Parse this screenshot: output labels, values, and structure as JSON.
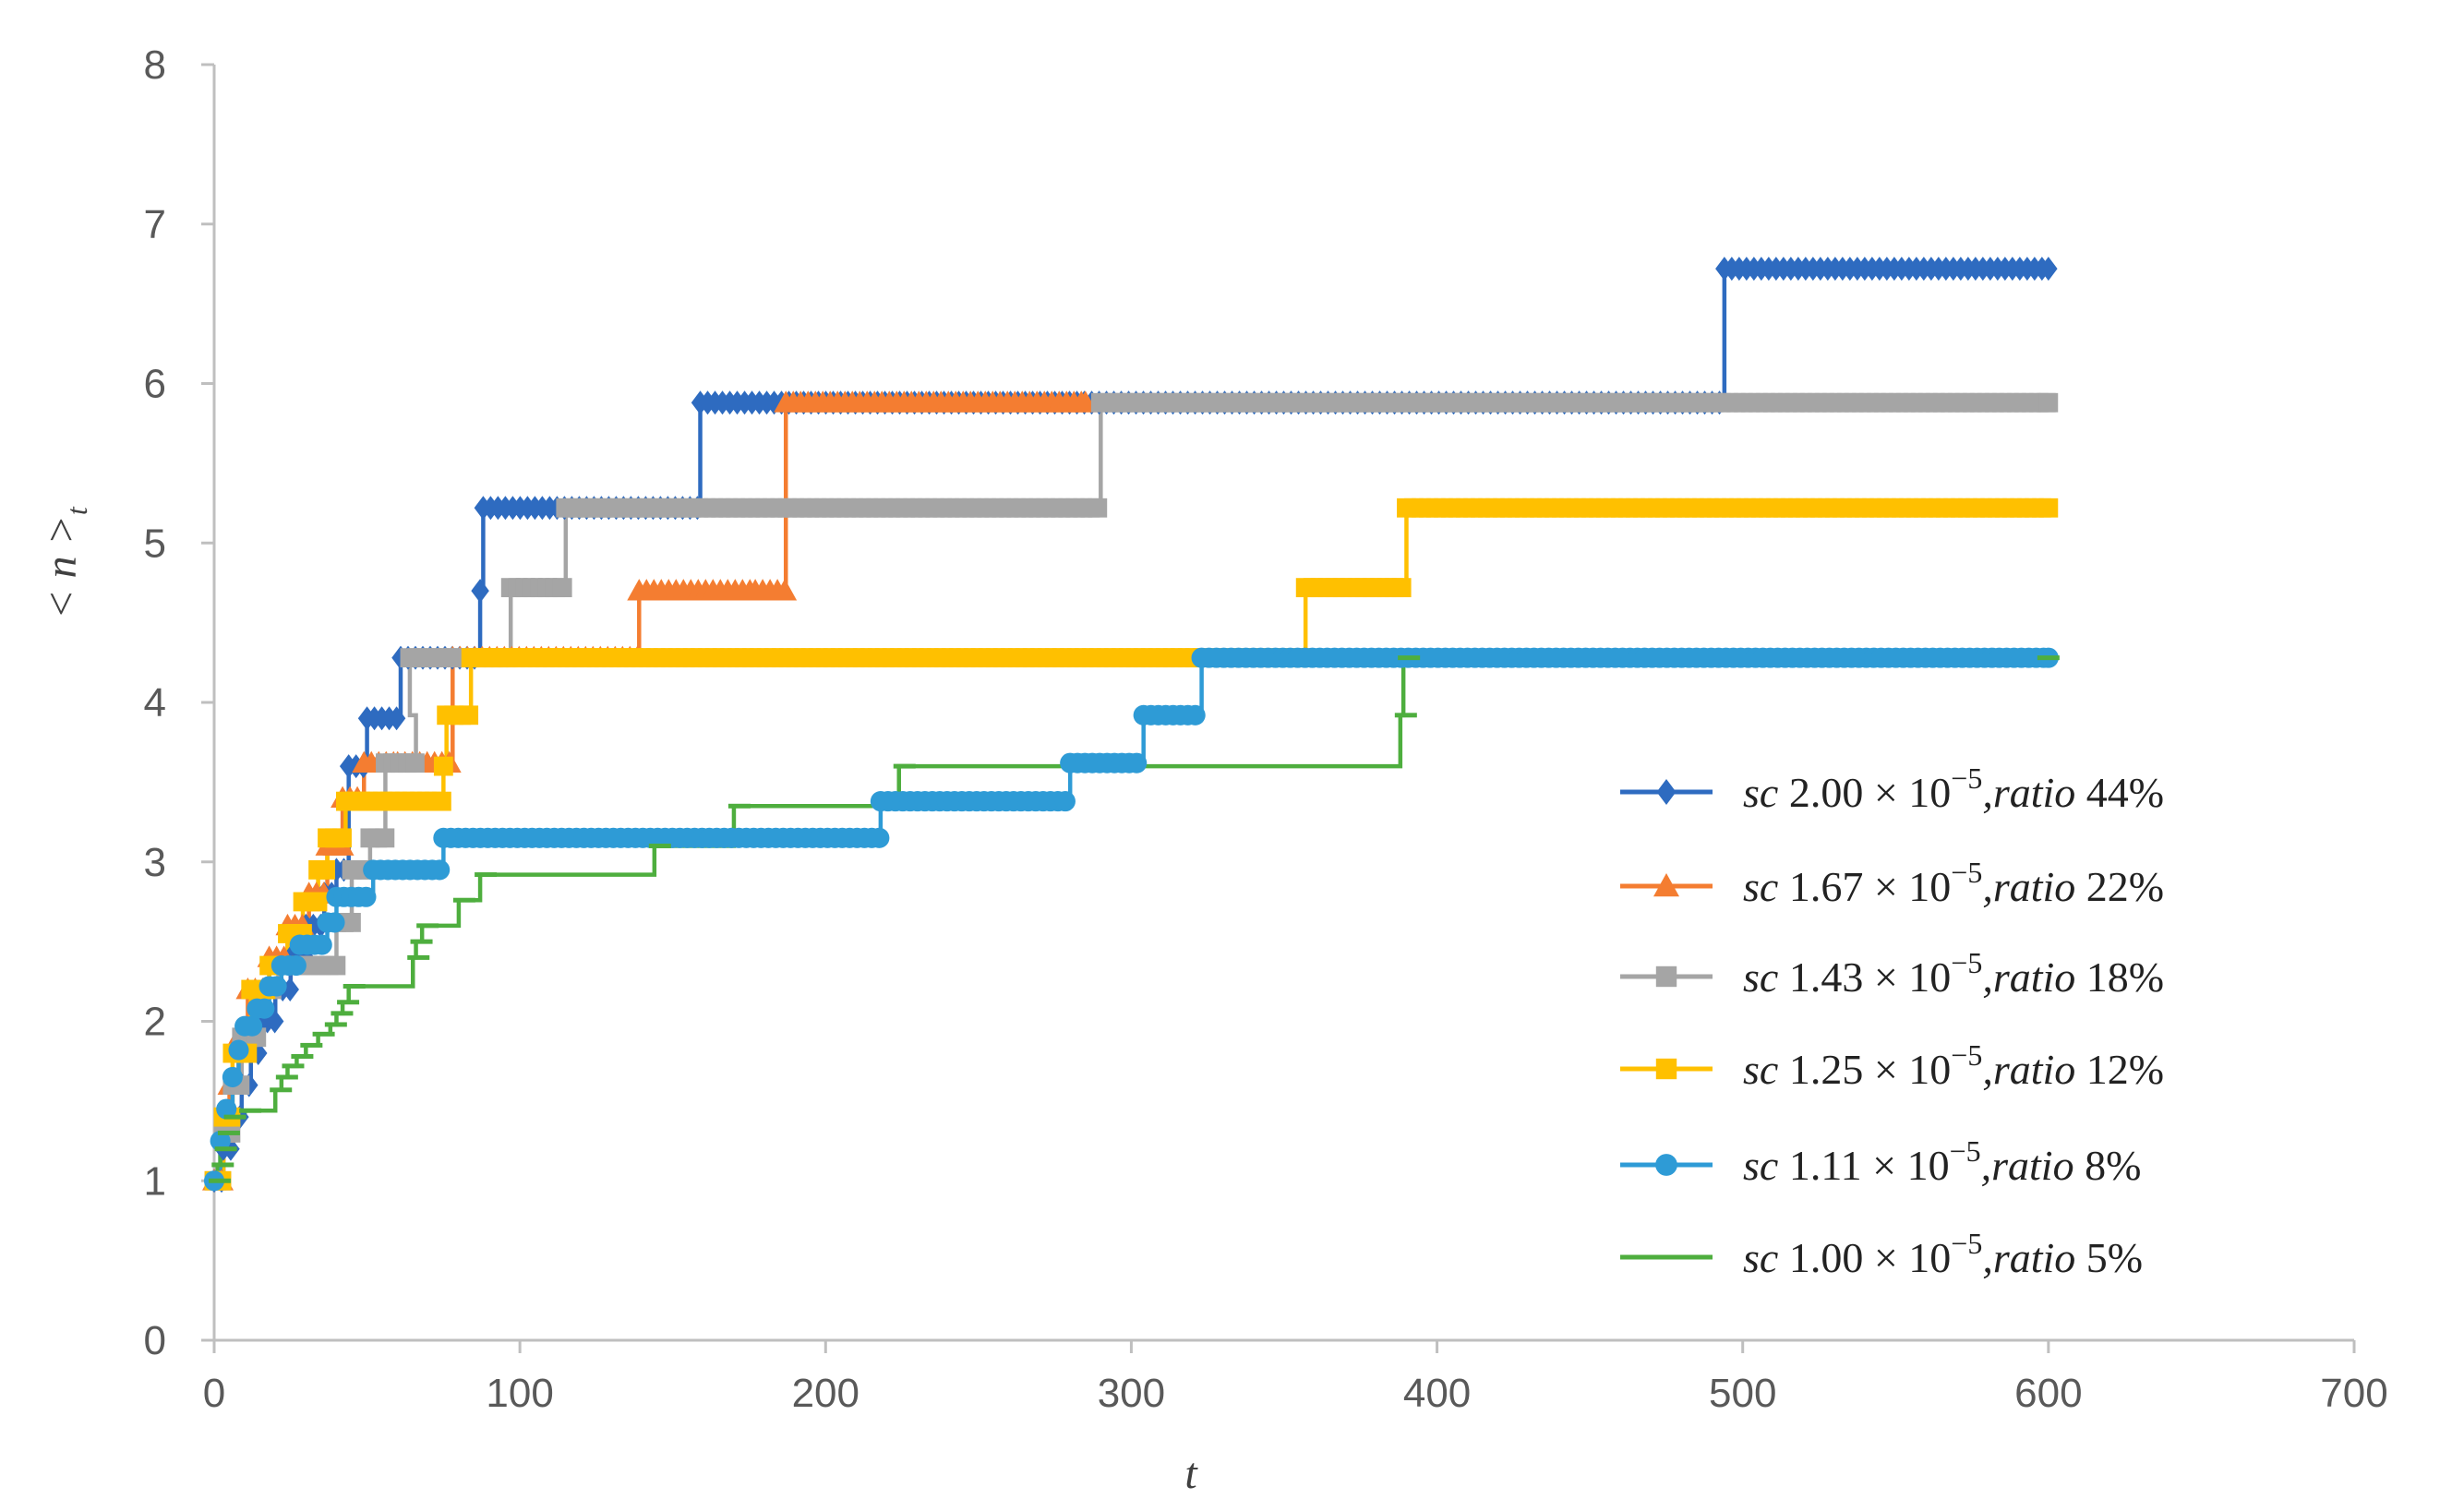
{
  "chart_data": {
    "type": "line",
    "title": "",
    "xlabel": "t",
    "ylabel": "< n >",
    "ylabel_subscript": "t",
    "xlim": [
      0,
      700
    ],
    "ylim": [
      0,
      8
    ],
    "x_ticks": [
      0,
      100,
      200,
      300,
      400,
      500,
      600,
      700
    ],
    "y_ticks": [
      0,
      1,
      2,
      3,
      4,
      5,
      6,
      7,
      8
    ],
    "grid": false,
    "legend_position": "right",
    "series": [
      {
        "name": "sc 2.00 × 10^-5, ratio 44%",
        "label_sc": "sc",
        "label_value": "2.00 × 10",
        "label_exp": "−5",
        "label_ratio": ",ratio",
        "label_pct": "44%",
        "color": "#2E6BC0",
        "marker": "diamond",
        "steps": [
          [
            0,
            1.0
          ],
          [
            3,
            1.2
          ],
          [
            6,
            1.4
          ],
          [
            9,
            1.6
          ],
          [
            12,
            1.8
          ],
          [
            15,
            2.0
          ],
          [
            20,
            2.2
          ],
          [
            25,
            2.4
          ],
          [
            30,
            2.6
          ],
          [
            36,
            2.8
          ],
          [
            40,
            2.95
          ],
          [
            44,
            3.6
          ],
          [
            50,
            3.9
          ],
          [
            61,
            4.28
          ],
          [
            87,
            4.7
          ],
          [
            88,
            5.22
          ],
          [
            159,
            5.88
          ],
          [
            494,
            6.72
          ],
          [
            600,
            6.72
          ]
        ]
      },
      {
        "name": "sc 1.67 × 10^-5, ratio 22%",
        "label_sc": "sc",
        "label_value": "1.67 × 10",
        "label_exp": "−5",
        "label_ratio": ",ratio",
        "label_pct": "22%",
        "color": "#F47D31",
        "marker": "triangle",
        "steps": [
          [
            0,
            1.0
          ],
          [
            3,
            1.3
          ],
          [
            5,
            1.6
          ],
          [
            8,
            1.9
          ],
          [
            11,
            2.2
          ],
          [
            18,
            2.4
          ],
          [
            24,
            2.6
          ],
          [
            31,
            2.8
          ],
          [
            37,
            3.1
          ],
          [
            42,
            3.4
          ],
          [
            49,
            3.62
          ],
          [
            60,
            3.62
          ],
          [
            78,
            4.28
          ],
          [
            139,
            4.7
          ],
          [
            177,
            4.7
          ],
          [
            187,
            5.88
          ],
          [
            285,
            5.88
          ]
        ]
      },
      {
        "name": "sc 1.43 × 10^-5, ratio 18%",
        "label_sc": "sc",
        "label_value": "1.43 × 10",
        "label_exp": "−5",
        "label_ratio": ",ratio",
        "label_pct": "18%",
        "color": "#A5A5A5",
        "marker": "square",
        "steps": [
          [
            0,
            1.0
          ],
          [
            3,
            1.3
          ],
          [
            6,
            1.6
          ],
          [
            9,
            1.9
          ],
          [
            14,
            2.2
          ],
          [
            21,
            2.35
          ],
          [
            35,
            2.35
          ],
          [
            40,
            2.62
          ],
          [
            45,
            2.95
          ],
          [
            51,
            3.15
          ],
          [
            56,
            3.62
          ],
          [
            66,
            3.92
          ],
          [
            64,
            4.28
          ],
          [
            97,
            4.72
          ],
          [
            115,
            5.22
          ],
          [
            290,
            5.88
          ],
          [
            600,
            5.88
          ]
        ]
      },
      {
        "name": "sc 1.25 × 10^-5, ratio 12%",
        "label_sc": "sc",
        "label_value": "1.25 × 10",
        "label_exp": "−5",
        "label_ratio": ",ratio",
        "label_pct": "12%",
        "color": "#FFC000",
        "marker": "square",
        "steps": [
          [
            0,
            1.0
          ],
          [
            3,
            1.4
          ],
          [
            6,
            1.8
          ],
          [
            12,
            2.2
          ],
          [
            18,
            2.35
          ],
          [
            24,
            2.55
          ],
          [
            29,
            2.75
          ],
          [
            34,
            2.95
          ],
          [
            37,
            3.15
          ],
          [
            43,
            3.38
          ],
          [
            75,
            3.6
          ],
          [
            76,
            3.92
          ],
          [
            84,
            4.28
          ],
          [
            357,
            4.72
          ],
          [
            390,
            5.22
          ],
          [
            600,
            5.22
          ]
        ]
      },
      {
        "name": "sc 1.11 × 10^-5, ratio 8%",
        "label_sc": "sc",
        "label_value": "1.11 × 10",
        "label_exp": "−5",
        "label_ratio": ",ratio",
        "label_pct": "8%",
        "color": "#2E9BD6",
        "marker": "circle",
        "steps": [
          [
            0,
            1.0
          ],
          [
            2,
            1.25
          ],
          [
            4,
            1.45
          ],
          [
            6,
            1.65
          ],
          [
            8,
            1.82
          ],
          [
            10,
            1.97
          ],
          [
            14,
            2.08
          ],
          [
            18,
            2.22
          ],
          [
            22,
            2.35
          ],
          [
            28,
            2.48
          ],
          [
            37,
            2.62
          ],
          [
            40,
            2.78
          ],
          [
            52,
            2.95
          ],
          [
            75,
            3.15
          ],
          [
            218,
            3.38
          ],
          [
            280,
            3.62
          ],
          [
            304,
            3.92
          ],
          [
            323,
            4.28
          ],
          [
            600,
            4.28
          ]
        ]
      },
      {
        "name": "sc 1.00 × 10^-5, ratio 5%",
        "label_sc": "sc",
        "label_value": "1.00 × 10",
        "label_exp": "−5",
        "label_ratio": ",ratio",
        "label_pct": "5%",
        "color": "#4EAE3E",
        "marker": "dash",
        "steps": [
          [
            0,
            1.0
          ],
          [
            1,
            1.1
          ],
          [
            2,
            1.2
          ],
          [
            3,
            1.3
          ],
          [
            5,
            1.4
          ],
          [
            10,
            1.44
          ],
          [
            20,
            1.57
          ],
          [
            22,
            1.65
          ],
          [
            24,
            1.72
          ],
          [
            27,
            1.78
          ],
          [
            30,
            1.85
          ],
          [
            34,
            1.92
          ],
          [
            38,
            1.98
          ],
          [
            40,
            2.05
          ],
          [
            42,
            2.12
          ],
          [
            44,
            2.22
          ],
          [
            65,
            2.4
          ],
          [
            66,
            2.5
          ],
          [
            68,
            2.6
          ],
          [
            80,
            2.76
          ],
          [
            87,
            2.92
          ],
          [
            144,
            3.1
          ],
          [
            170,
            3.35
          ],
          [
            224,
            3.6
          ],
          [
            388,
            3.92
          ],
          [
            389,
            4.28
          ],
          [
            600,
            4.28
          ]
        ]
      }
    ]
  }
}
